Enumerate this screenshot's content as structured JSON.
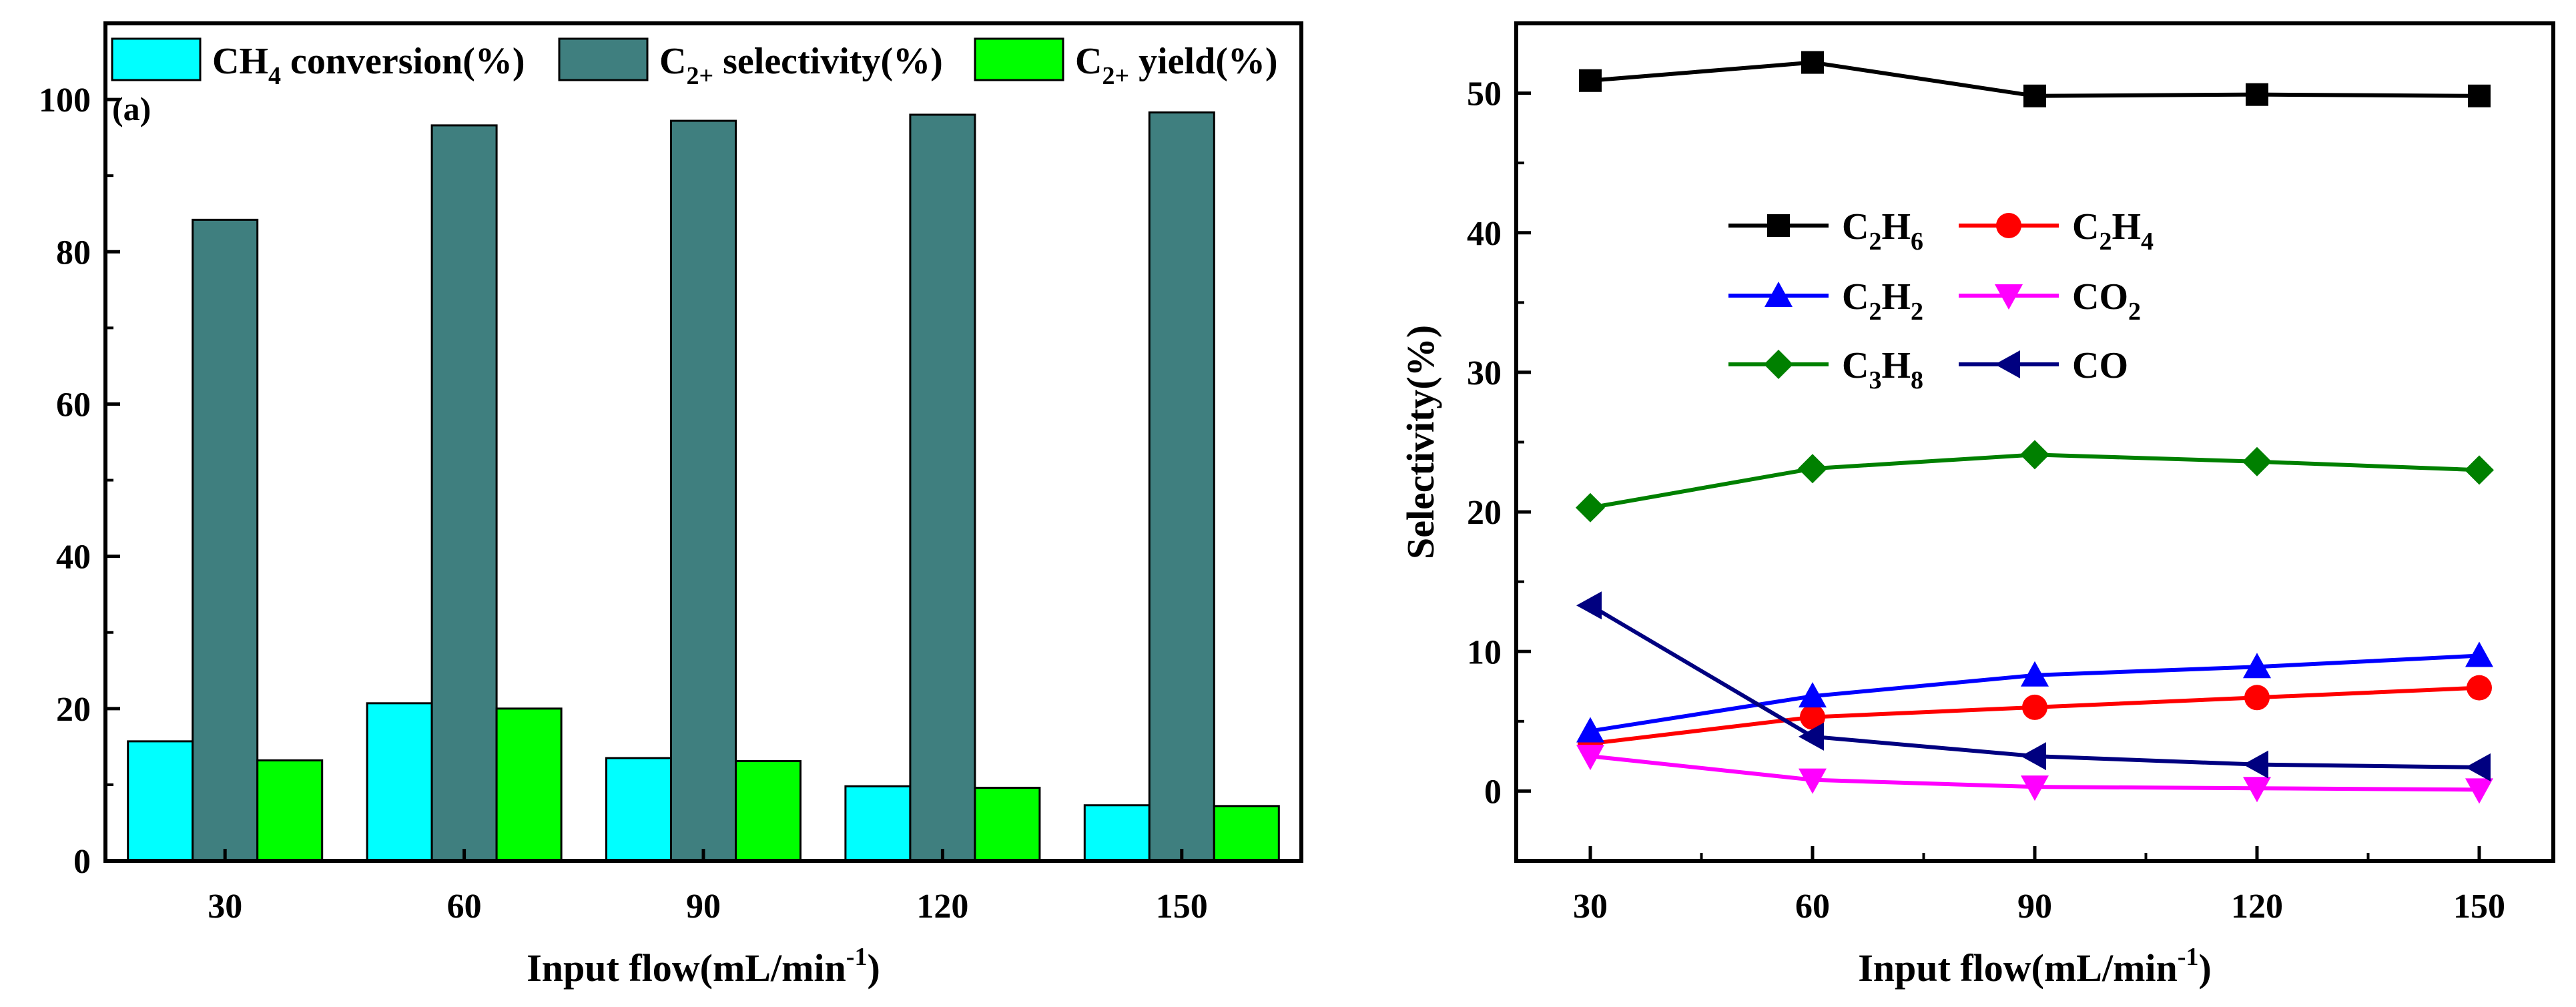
{
  "chart_data": [
    {
      "type": "bar",
      "panel_label": "(a)",
      "categories": [
        "30",
        "60",
        "90",
        "120",
        "150"
      ],
      "series": [
        {
          "name": "CH4 conversion(%)",
          "legend": {
            "pre": "CH",
            "sub": "4",
            "post": " conversion(%)"
          },
          "color": "#00ffff",
          "values": [
            15.7,
            20.7,
            13.5,
            9.8,
            7.3
          ]
        },
        {
          "name": "C2+ selectivity(%)",
          "legend": {
            "pre": "C",
            "sub": "2+",
            "post": " selectivity(%)"
          },
          "color": "#3f7f7f",
          "values": [
            84.2,
            96.6,
            97.2,
            98.0,
            98.3
          ]
        },
        {
          "name": "C2+ yield(%)",
          "legend": {
            "pre": "C",
            "sub": "2+",
            "post": " yield(%)"
          },
          "color": "#00ff00",
          "values": [
            13.2,
            20.0,
            13.1,
            9.6,
            7.2
          ]
        }
      ],
      "xlabel": {
        "main": "Input flow(mL/min",
        "sup": "-1",
        "close": ")"
      },
      "ylabel": "",
      "ylim": [
        0,
        110
      ],
      "yticks": [
        0,
        20,
        40,
        60,
        80,
        100
      ],
      "legend_position": "top"
    },
    {
      "type": "line",
      "x": [
        30,
        60,
        90,
        120,
        150
      ],
      "xticks": [
        30,
        60,
        90,
        120,
        150
      ],
      "series": [
        {
          "name": "C2H6",
          "legend": {
            "p1": "C",
            "s1": "2",
            "p2": "H",
            "s2": "6"
          },
          "color": "#000000",
          "marker": "square",
          "values": [
            50.9,
            52.2,
            49.8,
            49.9,
            49.8
          ]
        },
        {
          "name": "C2H4",
          "legend": {
            "p1": "C",
            "s1": "2",
            "p2": "H",
            "s2": "4"
          },
          "color": "#ff0000",
          "marker": "circle",
          "values": [
            3.4,
            5.3,
            6.0,
            6.7,
            7.4
          ]
        },
        {
          "name": "C2H2",
          "legend": {
            "p1": "C",
            "s1": "2",
            "p2": "H",
            "s2": "2"
          },
          "color": "#0000ff",
          "marker": "triangle-up",
          "values": [
            4.3,
            6.8,
            8.3,
            8.9,
            9.7
          ]
        },
        {
          "name": "CO2",
          "legend": {
            "p1": "CO",
            "s1": "2",
            "p2": "",
            "s2": ""
          },
          "color": "#ff00ff",
          "marker": "triangle-down",
          "values": [
            2.5,
            0.8,
            0.3,
            0.2,
            0.1
          ]
        },
        {
          "name": "C3H8",
          "legend": {
            "p1": "C",
            "s1": "3",
            "p2": "H",
            "s2": "8"
          },
          "color": "#008000",
          "marker": "diamond",
          "values": [
            20.3,
            23.1,
            24.1,
            23.6,
            23.0
          ]
        },
        {
          "name": "CO",
          "legend": {
            "p1": "CO",
            "s1": "",
            "p2": "",
            "s2": ""
          },
          "color": "#000080",
          "marker": "triangle-left",
          "values": [
            13.3,
            3.9,
            2.5,
            1.9,
            1.7
          ]
        }
      ],
      "xlabel": {
        "main": "Input flow(mL/min",
        "sup": "-1",
        "close": ")"
      },
      "ylabel": "Selectivity(%)",
      "xlim": [
        20,
        160
      ],
      "ylim": [
        -5,
        55
      ],
      "yticks": [
        0,
        10,
        20,
        30,
        40,
        50
      ],
      "legend_position": "upper-left"
    }
  ]
}
